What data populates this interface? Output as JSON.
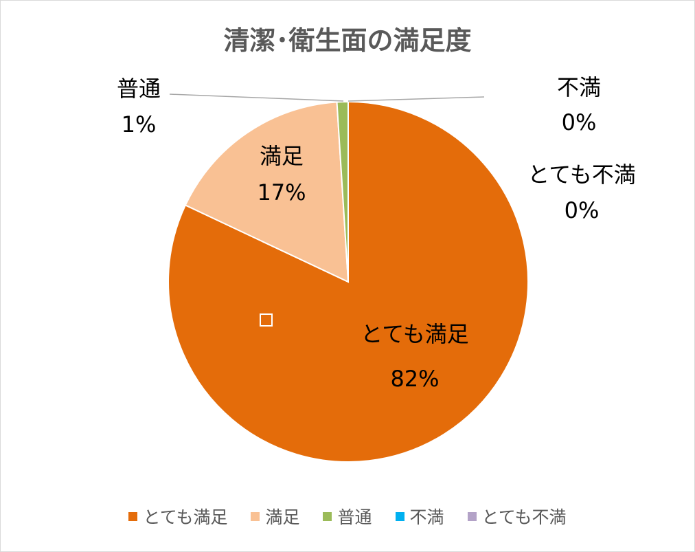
{
  "chart_data": {
    "type": "pie",
    "title": "清潔･衛生面の満足度",
    "slices": [
      {
        "name": "とても満足",
        "value": 82,
        "label": "82%",
        "color": "#E46C0A"
      },
      {
        "name": "満足",
        "value": 17,
        "label": "17%",
        "color": "#F9C194"
      },
      {
        "name": "普通",
        "value": 1,
        "label": "1%",
        "color": "#9BBB59"
      },
      {
        "name": "不満",
        "value": 0,
        "label": "0%",
        "color": "#00B0F0"
      },
      {
        "name": "とても不満",
        "value": 0,
        "label": "0%",
        "color": "#B3A2C7"
      }
    ],
    "legend_position": "bottom"
  }
}
